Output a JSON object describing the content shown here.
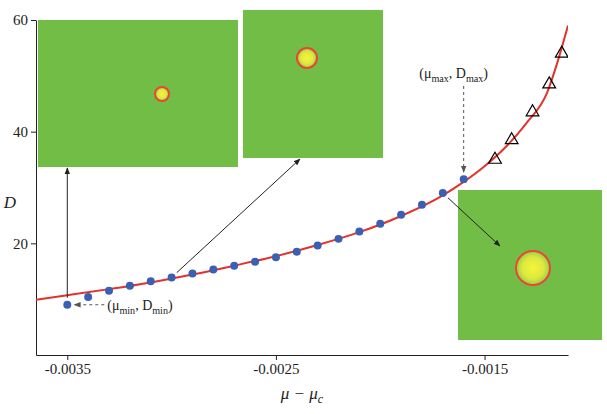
{
  "chart_data": {
    "type": "scatter",
    "xlabel": "μ − μc",
    "ylabel": "D",
    "xlim": [
      -0.00365,
      -0.0011
    ],
    "ylim": [
      0,
      60
    ],
    "xticks": [
      -0.0035,
      -0.0025,
      -0.0015
    ],
    "yticks": [
      20,
      40,
      60
    ],
    "series": [
      {
        "type": "scatter",
        "marker": "circle",
        "color": "#3a5fb3",
        "x": [
          -0.0035,
          -0.0034,
          -0.0033,
          -0.0032,
          -0.0031,
          -0.003,
          -0.0029,
          -0.0028,
          -0.0027,
          -0.0026,
          -0.0025,
          -0.0024,
          -0.0023,
          -0.0022,
          -0.0021,
          -0.002,
          -0.0019,
          -0.0018,
          -0.0017,
          -0.0016
        ],
        "values": [
          9.0,
          10.4,
          11.5,
          12.4,
          13.2,
          13.9,
          14.6,
          15.3,
          16.0,
          16.7,
          17.5,
          18.5,
          19.6,
          20.8,
          22.1,
          23.5,
          25.1,
          26.9,
          29.0,
          31.5
        ]
      },
      {
        "type": "scatter",
        "marker": "triangle-open",
        "color": "#000000",
        "x": [
          -0.00145,
          -0.00137,
          -0.00127,
          -0.00119,
          -0.00113
        ],
        "values": [
          35.0,
          38.5,
          43.5,
          48.5,
          54.0
        ]
      },
      {
        "type": "line",
        "line_style": "solid",
        "color": "#e2322b",
        "x": [
          -0.00365,
          -0.0035,
          -0.0033,
          -0.0031,
          -0.0029,
          -0.0027,
          -0.0025,
          -0.0023,
          -0.0021,
          -0.0019,
          -0.0017,
          -0.0016,
          -0.0015,
          -0.0014,
          -0.0013,
          -0.0012,
          -0.00115,
          -0.0011
        ],
        "values": [
          9.9,
          10.7,
          11.8,
          13.0,
          14.4,
          16.0,
          17.7,
          19.7,
          22.0,
          24.9,
          28.6,
          31.0,
          33.8,
          37.2,
          41.5,
          47.0,
          52.5,
          59.0
        ]
      }
    ],
    "annotations": [
      "(μmax, Dmax)",
      "(μmin, Dmin)"
    ]
  }
}
